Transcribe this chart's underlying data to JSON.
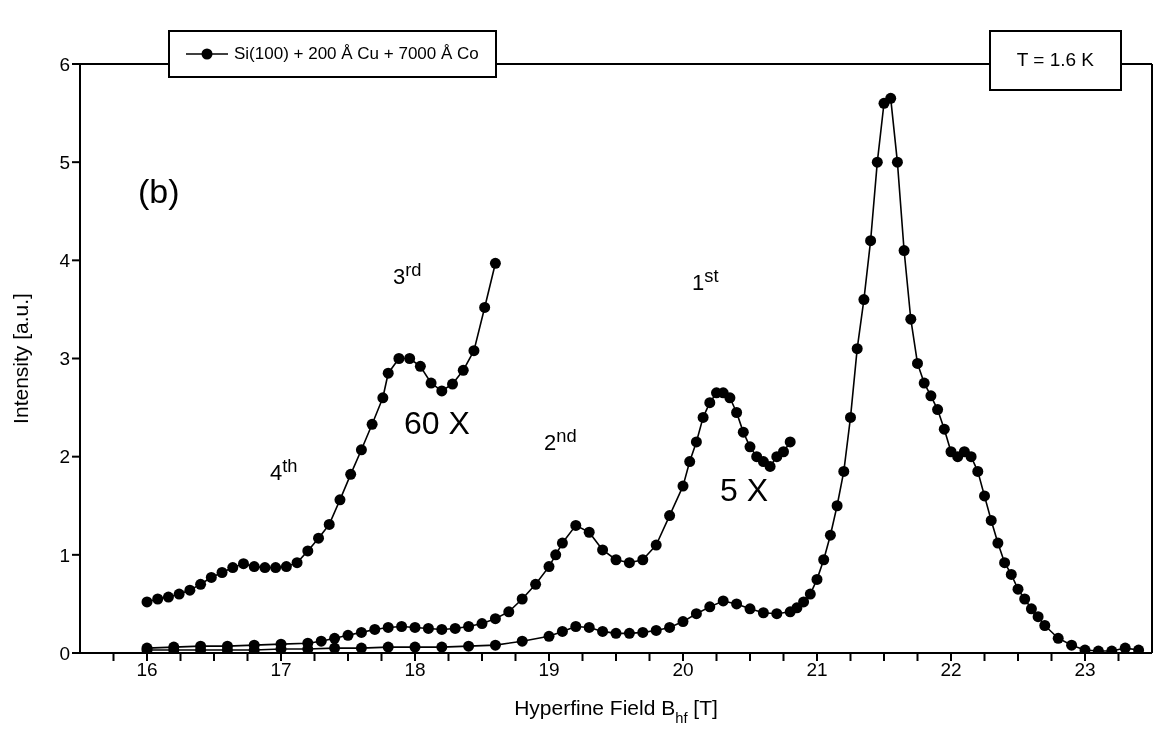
{
  "chart_data": {
    "type": "line",
    "xlabel": "Hyperfine Field B$_{hf}$ [T]",
    "ylabel": "Intensity [a.u.]",
    "xlim": [
      15.5,
      23.5
    ],
    "xticks": [
      {
        "value": 15.75,
        "label": null
      },
      16,
      {
        "value": 16.25,
        "label": null
      },
      {
        "value": 16.5,
        "label": null
      },
      {
        "value": 16.75,
        "label": null
      },
      17,
      {
        "value": 17.25,
        "label": null
      },
      {
        "value": 17.5,
        "label": null
      },
      {
        "value": 17.75,
        "label": null
      },
      18,
      {
        "value": 18.25,
        "label": null
      },
      {
        "value": 18.5,
        "label": null
      },
      {
        "value": 18.75,
        "label": null
      },
      19,
      {
        "value": 19.25,
        "label": null
      },
      {
        "value": 19.5,
        "label": null
      },
      {
        "value": 19.75,
        "label": null
      },
      20,
      {
        "value": 20.25,
        "label": null
      },
      {
        "value": 20.5,
        "label": null
      },
      {
        "value": 20.75,
        "label": null
      },
      21,
      {
        "value": 21.25,
        "label": null
      },
      {
        "value": 21.5,
        "label": null
      },
      {
        "value": 21.75,
        "label": null
      },
      22,
      {
        "value": 22.25,
        "label": null
      },
      {
        "value": 22.5,
        "label": null
      },
      {
        "value": 22.75,
        "label": null
      },
      23,
      {
        "value": 23.25,
        "label": null
      }
    ],
    "ylim": [
      0,
      6
    ],
    "yticks": [
      0,
      1,
      2,
      3,
      4,
      5,
      6
    ],
    "legend": "top left",
    "marker": "circle",
    "line_style": "solid",
    "series": [
      {
        "name": "Si(100) + 200 Å Cu + 7000 Å Co",
        "color": "#000000",
        "x": [
          16.0,
          16.2,
          16.4,
          16.6,
          16.8,
          17.0,
          17.2,
          17.4,
          17.6,
          17.8,
          18.0,
          18.2,
          18.4,
          18.6,
          18.8,
          19.0,
          19.1,
          19.2,
          19.3,
          19.4,
          19.5,
          19.6,
          19.7,
          19.8,
          19.9,
          20.0,
          20.1,
          20.2,
          20.3,
          20.4,
          20.5,
          20.6,
          20.7,
          20.8,
          20.85,
          20.9,
          20.95,
          21.0,
          21.05,
          21.1,
          21.15,
          21.2,
          21.25,
          21.3,
          21.35,
          21.4,
          21.45,
          21.5,
          21.55,
          21.6,
          21.65,
          21.7,
          21.75,
          21.8,
          21.85,
          21.9,
          21.95,
          22.0,
          22.05,
          22.1,
          22.15,
          22.2,
          22.25,
          22.3,
          22.35,
          22.4,
          22.45,
          22.5,
          22.55,
          22.6,
          22.65,
          22.7,
          22.8,
          22.9,
          23.0,
          23.1,
          23.2,
          23.3,
          23.4
        ],
        "values": [
          0.03,
          0.03,
          0.03,
          0.03,
          0.03,
          0.04,
          0.04,
          0.05,
          0.05,
          0.06,
          0.06,
          0.06,
          0.07,
          0.08,
          0.12,
          0.17,
          0.22,
          0.27,
          0.26,
          0.22,
          0.2,
          0.2,
          0.21,
          0.23,
          0.26,
          0.32,
          0.4,
          0.47,
          0.53,
          0.5,
          0.45,
          0.41,
          0.4,
          0.42,
          0.46,
          0.52,
          0.6,
          0.75,
          0.95,
          1.2,
          1.5,
          1.85,
          2.4,
          3.1,
          3.6,
          4.2,
          5.0,
          5.6,
          5.65,
          5.0,
          4.1,
          3.4,
          2.95,
          2.75,
          2.62,
          2.48,
          2.28,
          2.05,
          2.0,
          2.05,
          2.0,
          1.85,
          1.6,
          1.35,
          1.12,
          0.92,
          0.8,
          0.65,
          0.55,
          0.45,
          0.37,
          0.28,
          0.15,
          0.08,
          0.03,
          0.02,
          0.02,
          0.05,
          0.03
        ]
      },
      {
        "color": "#000000",
        "x": [
          16.0,
          16.2,
          16.4,
          16.6,
          16.8,
          17.0,
          17.2,
          17.3,
          17.4,
          17.5,
          17.6,
          17.7,
          17.8,
          17.9,
          18.0,
          18.1,
          18.2,
          18.3,
          18.4,
          18.5,
          18.6,
          18.7,
          18.8,
          18.9,
          19.0,
          19.05,
          19.1,
          19.2,
          19.3,
          19.4,
          19.5,
          19.6,
          19.7,
          19.8,
          19.9,
          20.0,
          20.05,
          20.1,
          20.15,
          20.2,
          20.25,
          20.3,
          20.35,
          20.4,
          20.45,
          20.5,
          20.55,
          20.6,
          20.65,
          20.7,
          20.75,
          20.8
        ],
        "values": [
          0.05,
          0.06,
          0.07,
          0.07,
          0.08,
          0.09,
          0.1,
          0.12,
          0.15,
          0.18,
          0.21,
          0.24,
          0.26,
          0.27,
          0.26,
          0.25,
          0.24,
          0.25,
          0.27,
          0.3,
          0.35,
          0.42,
          0.55,
          0.7,
          0.88,
          1.0,
          1.12,
          1.3,
          1.23,
          1.05,
          0.95,
          0.92,
          0.95,
          1.1,
          1.4,
          1.7,
          1.95,
          2.15,
          2.4,
          2.55,
          2.65,
          2.65,
          2.6,
          2.45,
          2.25,
          2.1,
          2.0,
          1.95,
          1.9,
          2.0,
          2.05,
          2.15
        ]
      },
      {
        "color": "#000000",
        "x": [
          16.0,
          16.08,
          16.16,
          16.24,
          16.32,
          16.4,
          16.48,
          16.56,
          16.64,
          16.72,
          16.8,
          16.88,
          16.96,
          17.04,
          17.12,
          17.2,
          17.28,
          17.36,
          17.44,
          17.52,
          17.6,
          17.68,
          17.76,
          17.8,
          17.88,
          17.96,
          18.04,
          18.12,
          18.2,
          18.28,
          18.36,
          18.44,
          18.52,
          18.6
        ],
        "values": [
          0.52,
          0.55,
          0.57,
          0.6,
          0.64,
          0.7,
          0.77,
          0.82,
          0.87,
          0.91,
          0.88,
          0.87,
          0.87,
          0.88,
          0.92,
          1.04,
          1.17,
          1.31,
          1.56,
          1.82,
          2.07,
          2.33,
          2.6,
          2.85,
          3.0,
          3.0,
          2.92,
          2.75,
          2.67,
          2.74,
          2.88,
          3.08,
          3.52,
          3.97
        ]
      }
    ],
    "annotations": [
      "T = 1.6 K",
      "(b)",
      "4$^{th}$",
      "3$^{rd}$",
      "60 X",
      "2$^{nd}$",
      "1$^{st}$",
      "5 X"
    ]
  }
}
